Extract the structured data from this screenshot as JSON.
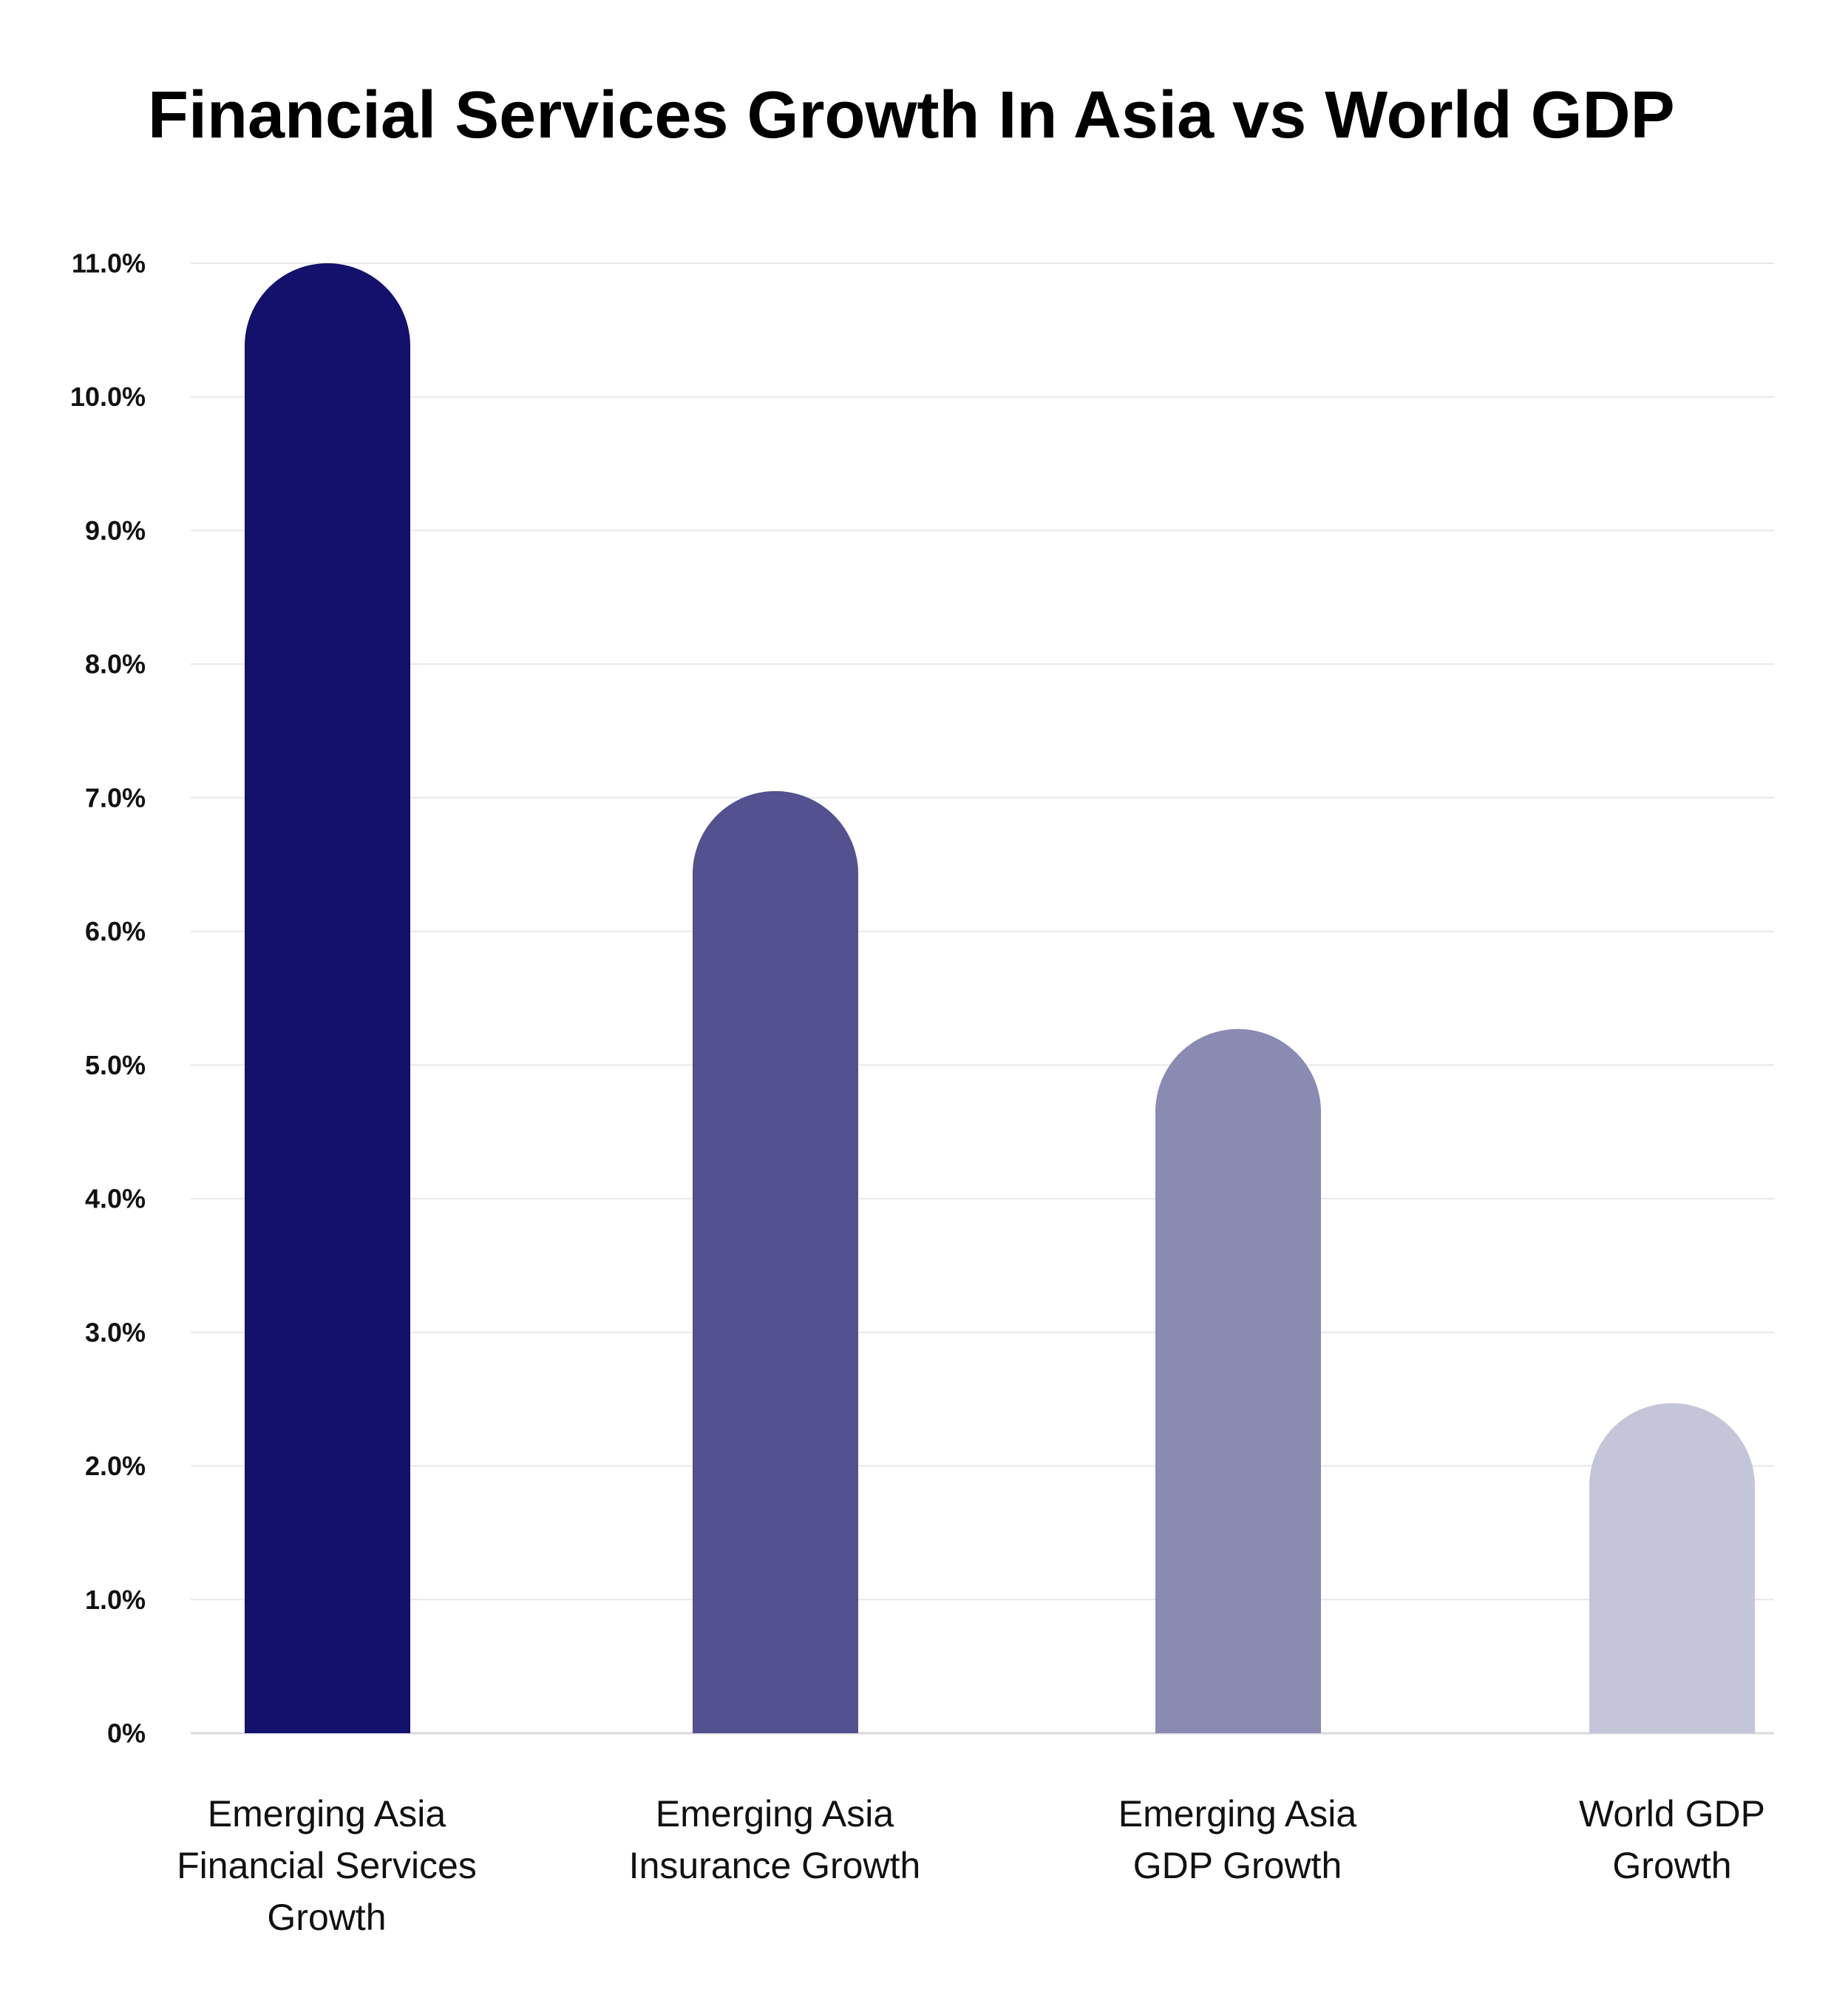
{
  "chart_data": {
    "type": "bar",
    "title": "Financial Services Growth In Asia vs World GDP",
    "categories": [
      [
        "Emerging Asia",
        "Financial Services",
        "Growth"
      ],
      [
        "Emerging Asia",
        "Insurance Growth"
      ],
      [
        "Emerging Asia",
        "GDP Growth"
      ],
      [
        "World GDP",
        "Growth"
      ]
    ],
    "values": [
      11.0,
      7.05,
      5.27,
      2.47
    ],
    "colors": [
      "#13116c",
      "#53518f",
      "#8b8ab3",
      "#c5c5da"
    ],
    "ylim": [
      0,
      11
    ],
    "yticks": [
      0,
      1,
      2,
      3,
      4,
      5,
      6,
      7,
      8,
      9,
      10,
      11
    ],
    "ytick_labels": [
      "0%",
      "1.0%",
      "2.0%",
      "3.0%",
      "4.0%",
      "5.0%",
      "6.0%",
      "7.0%",
      "8.0%",
      "9.0%",
      "10.0%",
      "11.0%"
    ],
    "xlabel": "",
    "ylabel": "",
    "grid": true,
    "legend": "none"
  }
}
